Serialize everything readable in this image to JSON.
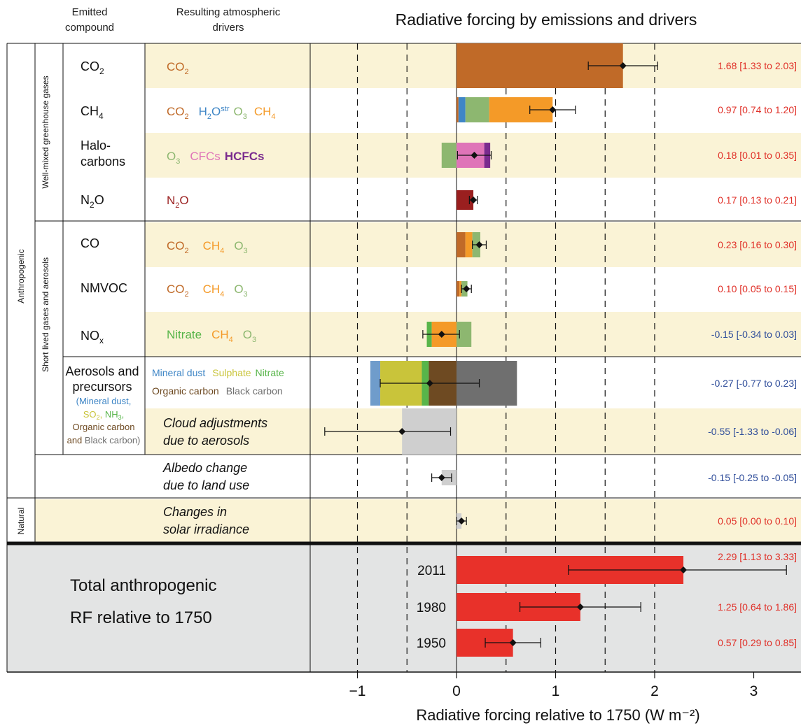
{
  "header": {
    "col1_line1": "Emitted",
    "col1_line2": "compound",
    "col2_line1": "Resulting atmospheric",
    "col2_line2": "drivers"
  },
  "chart_data": {
    "type": "bar",
    "title": "Radiative forcing by emissions and drivers",
    "xlabel": "Radiative forcing relative to 1750 (W m⁻²)",
    "xlim": [
      -1.5,
      3.4
    ],
    "xticks": [
      "−1",
      "0",
      "1",
      "2",
      "3"
    ],
    "xtick_values": [
      -1,
      0,
      1,
      2,
      3
    ],
    "dashed_gridlines": [
      -1,
      -0.5,
      0.5,
      1,
      1.5,
      2
    ],
    "groups": {
      "anthropogenic": "Anthropogenic",
      "natural": "Natural",
      "wmghg": "Well-mixed greenhouse gases",
      "short_lived": "Short lived gases and aerosols"
    },
    "colors": {
      "co2": "#c06a28",
      "h2o": "#3f86c6",
      "o3": "#8db770",
      "ch4": "#f49a28",
      "cfc": "#df74b8",
      "hcfc": "#7a2b8e",
      "n2o": "#9a1f1f",
      "nitrate": "#58b54a",
      "dust": "#6f9ccb",
      "sulphate": "#c9c43a",
      "orgc": "#6e4a22",
      "blackc": "#6f6f6f",
      "cloud": "#cfcfcf",
      "total": "#e8312a",
      "pos_text": "#e03028",
      "neg_text": "#2f4d9a",
      "row_band": "#faf3d6",
      "total_band": "#e3e4e4"
    },
    "rows": [
      {
        "compound": "CO2",
        "drivers": "CO2",
        "segments": [
          {
            "driver": "CO2",
            "start": 0,
            "end": 1.68,
            "color": "#c06a28"
          }
        ],
        "best": 1.68,
        "low": 1.33,
        "high": 2.03,
        "value_text": "1.68 [1.33 to 2.03]"
      },
      {
        "compound": "CH4",
        "drivers": "CO2 H2Ostr O3 CH4",
        "segments": [
          {
            "driver": "CO2",
            "start": 0,
            "end": 0.02,
            "color": "#c06a28"
          },
          {
            "driver": "H2Ostr",
            "start": 0.02,
            "end": 0.09,
            "color": "#3f86c6"
          },
          {
            "driver": "O3",
            "start": 0.09,
            "end": 0.33,
            "color": "#8db770"
          },
          {
            "driver": "CH4",
            "start": 0.33,
            "end": 0.97,
            "color": "#f49a28"
          }
        ],
        "best": 0.97,
        "low": 0.74,
        "high": 1.2,
        "value_text": "0.97 [0.74 to 1.20]"
      },
      {
        "compound": "Halo-carbons",
        "drivers": "O3 CFCs HCFCs",
        "segments": [
          {
            "driver": "O3",
            "start": -0.15,
            "end": 0,
            "color": "#8db770"
          },
          {
            "driver": "CFCs",
            "start": 0,
            "end": 0.28,
            "color": "#df74b8"
          },
          {
            "driver": "HCFCs",
            "start": 0.28,
            "end": 0.34,
            "color": "#7a2b8e"
          }
        ],
        "best": 0.18,
        "low": 0.01,
        "high": 0.35,
        "value_text": "0.18 [0.01 to 0.35]"
      },
      {
        "compound": "N2O",
        "drivers": "N2O",
        "segments": [
          {
            "driver": "N2O",
            "start": 0,
            "end": 0.17,
            "color": "#9a1f1f"
          }
        ],
        "best": 0.17,
        "low": 0.13,
        "high": 0.21,
        "value_text": "0.17 [0.13 to 0.21]"
      },
      {
        "compound": "CO",
        "drivers": "CO2 CH4 O3",
        "segments": [
          {
            "driver": "CO2",
            "start": 0,
            "end": 0.09,
            "color": "#c06a28"
          },
          {
            "driver": "CH4",
            "start": 0.09,
            "end": 0.16,
            "color": "#f49a28"
          },
          {
            "driver": "O3",
            "start": 0.16,
            "end": 0.24,
            "color": "#8db770"
          }
        ],
        "best": 0.23,
        "low": 0.16,
        "high": 0.3,
        "value_text": "0.23 [0.16 to 0.30]"
      },
      {
        "compound": "NMVOC",
        "drivers": "CO2 CH4 O3",
        "segments": [
          {
            "driver": "CO2",
            "start": 0,
            "end": 0.03,
            "color": "#c06a28"
          },
          {
            "driver": "CH4",
            "start": 0.03,
            "end": 0.05,
            "color": "#f49a28"
          },
          {
            "driver": "O3",
            "start": 0.05,
            "end": 0.11,
            "color": "#8db770"
          }
        ],
        "best": 0.1,
        "low": 0.05,
        "high": 0.15,
        "value_text": "0.10 [0.05 to 0.15]"
      },
      {
        "compound": "NOx",
        "drivers": "Nitrate CH4 O3",
        "segments": [
          {
            "driver": "Nitrate",
            "start": -0.3,
            "end": -0.25,
            "color": "#58b54a"
          },
          {
            "driver": "CH4",
            "start": -0.25,
            "end": 0,
            "color": "#f49a28"
          },
          {
            "driver": "O3",
            "start": 0,
            "end": 0.15,
            "color": "#8db770"
          }
        ],
        "best": -0.15,
        "low": -0.34,
        "high": 0.03,
        "value_text": "-0.15 [-0.34 to 0.03]"
      },
      {
        "compound": "Aerosols and precursors",
        "compound_detail": "(Mineral dust, SO2, NH3, Organic carbon and Black carbon)",
        "drivers": "Mineral dust Sulphate Nitrate Organic carbon Black carbon",
        "segments": [
          {
            "driver": "Mineral dust",
            "start": -0.87,
            "end": -0.77,
            "color": "#6f9ccb"
          },
          {
            "driver": "Sulphate",
            "start": -0.77,
            "end": -0.35,
            "color": "#c9c43a"
          },
          {
            "driver": "Nitrate",
            "start": -0.35,
            "end": -0.28,
            "color": "#58b54a"
          },
          {
            "driver": "Organic carbon",
            "start": -0.28,
            "end": 0,
            "color": "#6e4a22"
          },
          {
            "driver": "Black carbon",
            "start": 0,
            "end": 0.61,
            "color": "#6f6f6f"
          }
        ],
        "best": -0.27,
        "low": -0.77,
        "high": 0.23,
        "value_text": "-0.27 [-0.77 to 0.23]"
      },
      {
        "compound": "",
        "drivers": "Cloud adjustments due to aerosols",
        "segments": [
          {
            "driver": "Cloud adjustments due to aerosols",
            "start": -0.55,
            "end": 0,
            "color": "#cfcfcf"
          }
        ],
        "best": -0.55,
        "low": -1.33,
        "high": -0.06,
        "value_text": "-0.55 [-1.33 to -0.06]"
      },
      {
        "compound": "",
        "drivers": "Albedo change due to land use",
        "segments": [
          {
            "driver": "Albedo change due to land use",
            "start": -0.15,
            "end": 0,
            "color": "#cfcfcf"
          }
        ],
        "best": -0.15,
        "low": -0.25,
        "high": -0.05,
        "value_text": "-0.15 [-0.25 to -0.05]"
      },
      {
        "compound": "",
        "drivers": "Changes in solar irradiance",
        "segments": [
          {
            "driver": "Changes in solar irradiance",
            "start": 0,
            "end": 0.05,
            "color": "#cfcfcf"
          }
        ],
        "best": 0.05,
        "low": 0.0,
        "high": 0.1,
        "value_text": "0.05 [0.00 to 0.10]"
      }
    ],
    "total_label_line1": "Total anthropogenic",
    "total_label_line2": "RF relative to 1750",
    "totals": [
      {
        "year": "2011",
        "best": 2.29,
        "low": 1.13,
        "high": 3.33,
        "value_text": "2.29 [1.13 to 3.33]"
      },
      {
        "year": "1980",
        "best": 1.25,
        "low": 0.64,
        "high": 1.86,
        "value_text": "1.25 [0.64 to 1.86]"
      },
      {
        "year": "1950",
        "best": 0.57,
        "low": 0.29,
        "high": 0.85,
        "value_text": "0.57 [0.29 to 0.85]"
      }
    ]
  }
}
